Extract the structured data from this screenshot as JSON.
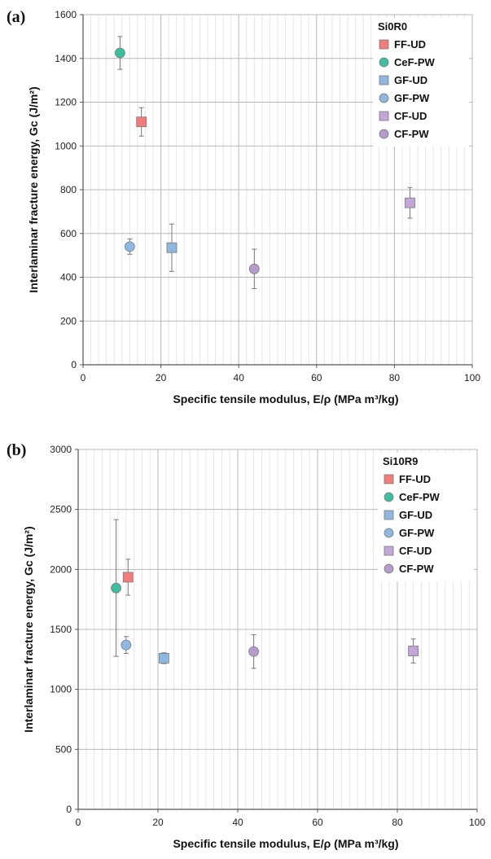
{
  "chart_data": [
    {
      "panel_label": "(a)",
      "type": "scatter",
      "legend_title": "Si0R0",
      "xlabel": "Specific tensile modulus, E/ρ (MPa m³/kg)",
      "ylabel": "Interlaminar fracture energy, Gc (J/m²)",
      "xlim": [
        0,
        100
      ],
      "ylim": [
        0,
        1600
      ],
      "xticks": [
        0,
        20,
        40,
        60,
        80,
        100
      ],
      "yticks": [
        0,
        200,
        400,
        600,
        800,
        1000,
        1200,
        1400,
        1600
      ],
      "grid": true,
      "legend_position": "top-right",
      "series": [
        {
          "name": "FF-UD",
          "marker": "square",
          "color": "#f07c7c",
          "x": 15,
          "y": 1110,
          "err": 65
        },
        {
          "name": "CeF-PW",
          "marker": "circle",
          "color": "#3cbf9e",
          "x": 9.5,
          "y": 1425,
          "err": 75
        },
        {
          "name": "GF-UD",
          "marker": "square",
          "color": "#8fb8e0",
          "x": 22.8,
          "y": 535,
          "err": 108
        },
        {
          "name": "GF-PW",
          "marker": "circle",
          "color": "#8fb8e0",
          "x": 12,
          "y": 540,
          "err": 35
        },
        {
          "name": "CF-UD",
          "marker": "square",
          "color": "#c2a7d6",
          "x": 84,
          "y": 740,
          "err": 70
        },
        {
          "name": "CF-PW",
          "marker": "circle",
          "color": "#b69bcc",
          "x": 44,
          "y": 438,
          "err": 90
        }
      ]
    },
    {
      "panel_label": "(b)",
      "type": "scatter",
      "legend_title": "Si10R9",
      "xlabel": "Specific tensile modulus, E/ρ (MPa m³/kg)",
      "ylabel": "Interlaminar fracture energy, Gc (J/m²)",
      "xlim": [
        0,
        100
      ],
      "ylim": [
        0,
        3000
      ],
      "xticks": [
        0,
        20,
        40,
        60,
        80,
        100
      ],
      "yticks": [
        0,
        500,
        1000,
        1500,
        2000,
        2500,
        3000
      ],
      "grid": true,
      "legend_position": "top-right",
      "series": [
        {
          "name": "FF-UD",
          "marker": "square",
          "color": "#f07c7c",
          "x": 12.5,
          "y": 1935,
          "err": 150
        },
        {
          "name": "CeF-PW",
          "marker": "circle",
          "color": "#3cbf9e",
          "x": 9.5,
          "y": 1845,
          "err": 570
        },
        {
          "name": "GF-UD",
          "marker": "square",
          "color": "#8fb8e0",
          "x": 21.5,
          "y": 1260,
          "err": 45
        },
        {
          "name": "GF-PW",
          "marker": "circle",
          "color": "#8fb8e0",
          "x": 12,
          "y": 1370,
          "err": 70
        },
        {
          "name": "CF-UD",
          "marker": "square",
          "color": "#c2a7d6",
          "x": 84,
          "y": 1320,
          "err": 100
        },
        {
          "name": "CF-PW",
          "marker": "circle",
          "color": "#b69bcc",
          "x": 44,
          "y": 1315,
          "err": 140
        }
      ]
    }
  ]
}
